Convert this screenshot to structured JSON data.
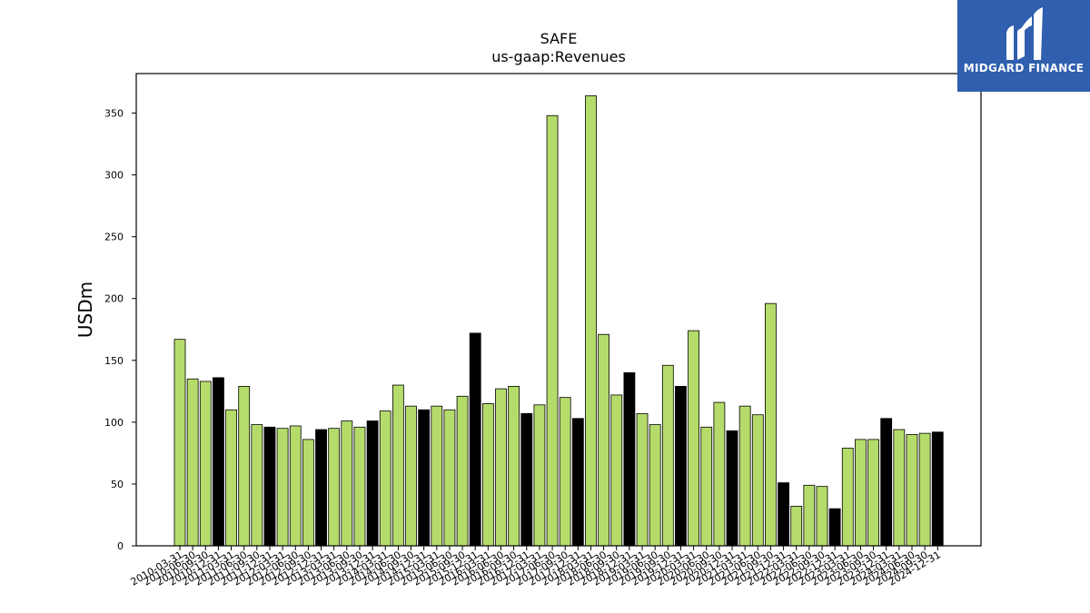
{
  "chart_data": {
    "type": "bar",
    "title": "SAFE",
    "subtitle": "us-gaap:Revenues",
    "xlabel": "",
    "ylabel": "USDm",
    "ylim": [
      0,
      382
    ],
    "yticks": [
      0,
      50,
      100,
      150,
      200,
      250,
      300,
      350
    ],
    "grid": false,
    "colors": {
      "quarter": "#b5dc6b",
      "year_end": "#000000",
      "edge": "#000000"
    },
    "categories": [
      "2010-03-31",
      "2010-06-30",
      "2010-09-30",
      "2010-12-31",
      "2011-03-31",
      "2011-06-30",
      "2011-09-30",
      "2011-12-31",
      "2012-03-31",
      "2012-06-30",
      "2012-09-30",
      "2012-12-31",
      "2013-03-31",
      "2013-06-30",
      "2013-09-30",
      "2013-12-31",
      "2014-03-31",
      "2014-06-30",
      "2014-09-30",
      "2014-12-31",
      "2015-03-31",
      "2015-06-30",
      "2015-09-30",
      "2015-12-31",
      "2016-03-31",
      "2016-06-30",
      "2016-09-30",
      "2016-12-31",
      "2017-03-31",
      "2017-06-30",
      "2017-09-30",
      "2017-12-31",
      "2018-03-31",
      "2018-06-30",
      "2018-09-30",
      "2018-12-31",
      "2019-03-31",
      "2019-06-30",
      "2019-09-30",
      "2019-12-31",
      "2020-03-31",
      "2020-06-30",
      "2020-09-30",
      "2020-12-31",
      "2021-03-31",
      "2021-06-30",
      "2021-09-30",
      "2021-12-31",
      "2022-03-31",
      "2022-06-30",
      "2022-09-30",
      "2022-12-31",
      "2023-03-31",
      "2023-06-30",
      "2023-09-30",
      "2023-12-31",
      "2024-03-31",
      "2024-06-30",
      "2024-09-30",
      "2024-12-31"
    ],
    "values": [
      167,
      135,
      133,
      136,
      110,
      129,
      98,
      96,
      95,
      97,
      86,
      94,
      95,
      101,
      96,
      101,
      109,
      130,
      113,
      110,
      113,
      110,
      121,
      172,
      115,
      127,
      129,
      107,
      114,
      348,
      120,
      103,
      364,
      171,
      122,
      140,
      107,
      98,
      146,
      129,
      174,
      96,
      116,
      93,
      113,
      106,
      196,
      51,
      32,
      49,
      48,
      30,
      79,
      86,
      86,
      103,
      94,
      90,
      91,
      92
    ],
    "year_end": [
      false,
      false,
      false,
      true,
      false,
      false,
      false,
      true,
      false,
      false,
      false,
      true,
      false,
      false,
      false,
      true,
      false,
      false,
      false,
      true,
      false,
      false,
      false,
      true,
      false,
      false,
      false,
      true,
      false,
      false,
      false,
      true,
      false,
      false,
      false,
      true,
      false,
      false,
      false,
      true,
      false,
      false,
      false,
      true,
      false,
      false,
      false,
      true,
      false,
      false,
      false,
      true,
      false,
      false,
      false,
      true,
      false,
      false,
      false,
      true
    ]
  },
  "logo": {
    "text": "MIDGARD FINANCE",
    "background": "#2f5fae"
  }
}
